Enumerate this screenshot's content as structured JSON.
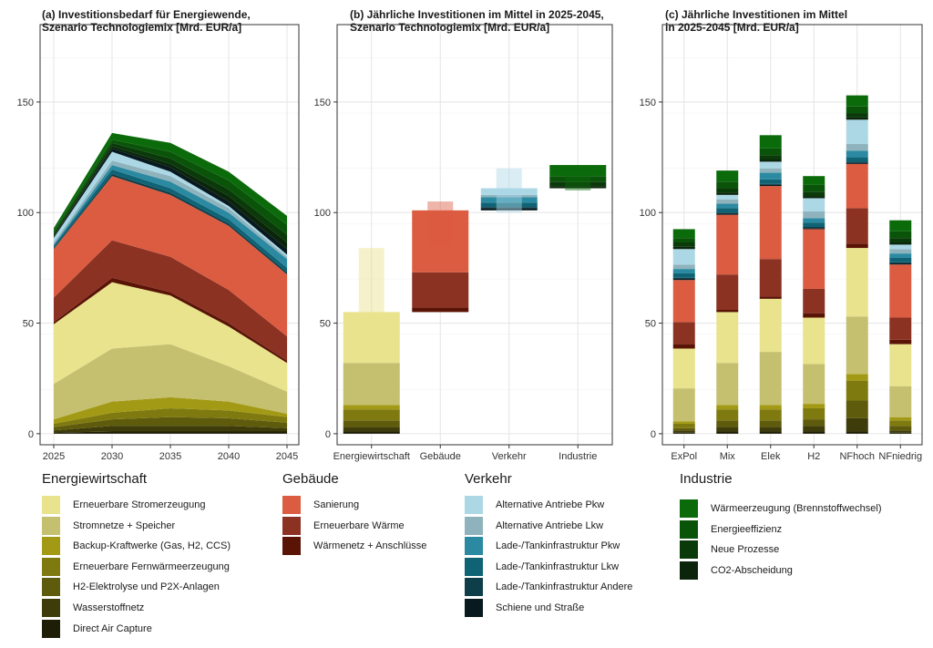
{
  "panels": {
    "a": {
      "title1": "(a) Investitionsbedarf für Energiewende,",
      "title2": "Szenario Technologiemix [Mrd. EUR/a]"
    },
    "b": {
      "title1": "(b) Jährliche Investitionen im Mittel in 2025-2045,",
      "title2": "Szenario Technologiemix [Mrd. EUR/a]"
    },
    "c": {
      "title1": "(c) Jährliche Investitionen im Mittel",
      "title2": "in 2025-2045 [Mrd. EUR/a]"
    }
  },
  "legend": {
    "groups": [
      {
        "title": "Energiewirtschaft",
        "items": [
          {
            "label": "Erneuerbare Stromerzeugung",
            "color": "#e8e38c"
          },
          {
            "label": "Stromnetze + Speicher",
            "color": "#c5bf70"
          },
          {
            "label": "Backup-Kraftwerke (Gas, H2, CCS)",
            "color": "#a29a14"
          },
          {
            "label": "Erneuerbare Fernwärmeerzeugung",
            "color": "#7f7a10"
          },
          {
            "label": "H2-Elektrolyse und P2X-Anlagen",
            "color": "#5f5b0d"
          },
          {
            "label": "Wasserstoffnetz",
            "color": "#3e3c0a"
          },
          {
            "label": "Direct Air Capture",
            "color": "#1e1d06"
          }
        ]
      },
      {
        "title": "Gebäude",
        "items": [
          {
            "label": "Sanierung",
            "color": "#dc5c41"
          },
          {
            "label": "Erneuerbare Wärme",
            "color": "#8b3223"
          },
          {
            "label": "Wärmenetz + Anschlüsse",
            "color": "#5a1406"
          }
        ]
      },
      {
        "title": "Verkehr",
        "items": [
          {
            "label": "Alternative Antriebe Pkw",
            "color": "#acd8e6"
          },
          {
            "label": "Alternative Antriebe Lkw",
            "color": "#8fb3bd"
          },
          {
            "label": "Lade-/Tankinfrastruktur Pkw",
            "color": "#2b8aa1"
          },
          {
            "label": "Lade-/Tankinfrastruktur Lkw",
            "color": "#0f6375"
          },
          {
            "label": "Lade-/Tankinfrastruktur Andere",
            "color": "#0e3e4a"
          },
          {
            "label": "Schiene und Straße",
            "color": "#081a20"
          }
        ]
      },
      {
        "title": "Industrie",
        "items": [
          {
            "label": "Wärmeerzeugung (Brennstoffwechsel)",
            "color": "#0b6b0b"
          },
          {
            "label": "Energieeffizienz",
            "color": "#0a540a"
          },
          {
            "label": "Neue Prozesse",
            "color": "#0a3a0a"
          },
          {
            "label": "CO2-Abscheidung",
            "color": "#0b250b"
          }
        ]
      }
    ]
  },
  "chart_data": [
    {
      "type": "area",
      "title": "(a) Investitionsbedarf für Energiewende, Szenario Technologiemix [Mrd. EUR/a]",
      "x": [
        2025,
        2030,
        2035,
        2040,
        2045
      ],
      "xticks": [
        "2025",
        "2030",
        "2035",
        "2040",
        "2045"
      ],
      "ylim": [
        -5,
        185
      ],
      "yticks": [
        0,
        50,
        100,
        150
      ],
      "grid": true,
      "series": [
        {
          "name": "Direct Air Capture",
          "values": [
            0.5,
            1,
            1,
            1,
            1
          ]
        },
        {
          "name": "Wasserstoffnetz",
          "values": [
            1,
            2.5,
            2.5,
            2.5,
            1.5
          ]
        },
        {
          "name": "H2-Elektrolyse und P2X-Anlagen",
          "values": [
            1.5,
            3,
            4,
            3.5,
            2.5
          ]
        },
        {
          "name": "Erneuerbare Fernwärmeerzeugung",
          "values": [
            1.5,
            3,
            4,
            3.5,
            2.5
          ]
        },
        {
          "name": "Backup-Kraftwerke (Gas, H2, CCS)",
          "values": [
            2,
            5,
            5,
            4,
            1.5
          ]
        },
        {
          "name": "Stromnetze + Speicher",
          "values": [
            16,
            24,
            24,
            16,
            10
          ]
        },
        {
          "name": "Erneuerbare Stromerzeugung",
          "values": [
            27,
            30,
            22,
            18,
            13
          ]
        },
        {
          "name": "Wärmenetz + Anschlüsse",
          "values": [
            1,
            2,
            1.5,
            1.5,
            1
          ]
        },
        {
          "name": "Erneuerbare Wärme",
          "values": [
            11,
            17,
            16,
            15,
            11
          ]
        },
        {
          "name": "Sanierung",
          "values": [
            22,
            29,
            28,
            29,
            28
          ]
        },
        {
          "name": "Lade-/Tankinfrastruktur Andere",
          "values": [
            0.5,
            1,
            1,
            1,
            1
          ]
        },
        {
          "name": "Lade-/Tankinfrastruktur Lkw",
          "values": [
            1,
            2,
            2,
            2,
            2
          ]
        },
        {
          "name": "Lade-/Tankinfrastruktur Pkw",
          "values": [
            0.5,
            2,
            3,
            3,
            4
          ]
        },
        {
          "name": "Alternative Antriebe Lkw",
          "values": [
            1,
            2,
            2.5,
            2,
            1
          ]
        },
        {
          "name": "Alternative Antriebe Pkw",
          "values": [
            2,
            4,
            2,
            1,
            1
          ]
        },
        {
          "name": "Schiene und Straße",
          "values": [
            0.5,
            1.5,
            2,
            2,
            2.5
          ]
        },
        {
          "name": "CO2-Abscheidung",
          "values": [
            0.5,
            1,
            1.5,
            2.5,
            3
          ]
        },
        {
          "name": "Neue Prozesse",
          "values": [
            1,
            1.5,
            2.5,
            3,
            3.5
          ]
        },
        {
          "name": "Energieeffizienz",
          "values": [
            1,
            1.5,
            3,
            4,
            4.5
          ]
        },
        {
          "name": "Wärmeerzeugung (Brennstoffwechsel)",
          "values": [
            1.5,
            3,
            4,
            4,
            4
          ]
        }
      ]
    },
    {
      "type": "waterfall",
      "title": "(b) Jährliche Investitionen im Mittel in 2025-2045, Szenario Technologiemix [Mrd. EUR/a]",
      "categories": [
        "Energiewirtschaft",
        "Gebäude",
        "Verkehr",
        "Industrie"
      ],
      "ylim": [
        -5,
        185
      ],
      "yticks": [
        0,
        50,
        100,
        150
      ],
      "grid": true,
      "stacks": [
        [
          {
            "name": "Direct Air Capture",
            "value": 1
          },
          {
            "name": "Wasserstoffnetz",
            "value": 2
          },
          {
            "name": "H2-Elektrolyse und P2X-Anlagen",
            "value": 3
          },
          {
            "name": "Erneuerbare Fernwärmeerzeugung",
            "value": 5
          },
          {
            "name": "Backup-Kraftwerke (Gas, H2, CCS)",
            "value": 2
          },
          {
            "name": "Stromnetze + Speicher",
            "value": 19
          },
          {
            "name": "Erneuerbare Stromerzeugung",
            "value": 23
          }
        ],
        [
          {
            "name": "Wärmenetz + Anschlüsse",
            "value": 2
          },
          {
            "name": "Erneuerbare Wärme",
            "value": 16
          },
          {
            "name": "Sanierung",
            "value": 28
          }
        ],
        [
          {
            "name": "Schiene und Straße",
            "value": 1
          },
          {
            "name": "Lade-/Tankinfrastruktur Andere",
            "value": 0.5
          },
          {
            "name": "Lade-/Tankinfrastruktur Lkw",
            "value": 2
          },
          {
            "name": "Lade-/Tankinfrastruktur Pkw",
            "value": 2.5
          },
          {
            "name": "Alternative Antriebe Lkw",
            "value": 1
          },
          {
            "name": "Alternative Antriebe Pkw",
            "value": 3
          }
        ],
        [
          {
            "name": "CO2-Abscheidung",
            "value": 1
          },
          {
            "name": "Neue Prozesse",
            "value": 2
          },
          {
            "name": "Energieeffizienz",
            "value": 2.5
          },
          {
            "name": "Wärmeerzeugung (Brennstoffwechsel)",
            "value": 5
          }
        ]
      ],
      "ranges": [
        [
          38,
          84
        ],
        [
          85,
          105
        ],
        [
          100,
          120
        ],
        [
          110,
          120
        ]
      ]
    },
    {
      "type": "bar",
      "title": "(c) Jährliche Investitionen im Mittel in 2025-2045 [Mrd. EUR/a]",
      "categories": [
        "ExPol",
        "Mix",
        "Elek",
        "H2",
        "NFhoch",
        "NFniedrig"
      ],
      "ylim": [
        -5,
        185
      ],
      "yticks": [
        0,
        50,
        100,
        150
      ],
      "grid": true,
      "series": [
        {
          "name": "Direct Air Capture",
          "values": [
            0.5,
            1,
            1,
            1,
            1,
            0.5
          ]
        },
        {
          "name": "Wasserstoffnetz",
          "values": [
            1,
            2,
            2,
            2.5,
            6,
            1
          ]
        },
        {
          "name": "H2-Elektrolyse und P2X-Anlagen",
          "values": [
            1,
            3,
            3,
            3,
            8,
            2
          ]
        },
        {
          "name": "Erneuerbare Fernwärmeerzeugung",
          "values": [
            2,
            5,
            5,
            5,
            9,
            2.5
          ]
        },
        {
          "name": "Backup-Kraftwerke (Gas, H2, CCS)",
          "values": [
            1,
            2,
            2,
            2,
            3,
            1.5
          ]
        },
        {
          "name": "Stromnetze + Speicher",
          "values": [
            15,
            19,
            24,
            18,
            26,
            14
          ]
        },
        {
          "name": "Erneuerbare Stromerzeugung",
          "values": [
            18,
            23,
            24,
            21,
            31,
            19
          ]
        },
        {
          "name": "Wärmenetz + Anschlüsse",
          "values": [
            2,
            1,
            1,
            2,
            2,
            2
          ]
        },
        {
          "name": "Erneuerbare Wärme",
          "values": [
            10,
            16,
            17,
            11,
            16,
            10
          ]
        },
        {
          "name": "Sanierung",
          "values": [
            19,
            27,
            33,
            27,
            20,
            24
          ]
        },
        {
          "name": "Schiene und Straße",
          "values": [
            0.5,
            0.5,
            0.5,
            0.5,
            0.5,
            0.5
          ]
        },
        {
          "name": "Lade-/Tankinfrastruktur Andere",
          "values": [
            0.5,
            0.5,
            0.5,
            0.5,
            0.5,
            0.5
          ]
        },
        {
          "name": "Lade-/Tankinfrastruktur Lkw",
          "values": [
            2,
            2,
            2,
            2,
            2,
            2
          ]
        },
        {
          "name": "Lade-/Tankinfrastruktur Pkw",
          "values": [
            2,
            2,
            3,
            2,
            3,
            2
          ]
        },
        {
          "name": "Alternative Antriebe Lkw",
          "values": [
            2,
            2,
            2,
            3,
            3,
            2
          ]
        },
        {
          "name": "Alternative Antriebe Pkw",
          "values": [
            7,
            2,
            3,
            6,
            11,
            2
          ]
        },
        {
          "name": "CO2-Abscheidung",
          "values": [
            1,
            1,
            1,
            1,
            1,
            1
          ]
        },
        {
          "name": "Neue Prozesse",
          "values": [
            2,
            2,
            2,
            2,
            2,
            2
          ]
        },
        {
          "name": "Energieeffizienz",
          "values": [
            2,
            3,
            3,
            3,
            3,
            3
          ]
        },
        {
          "name": "Wärmeerzeugung (Brennstoffwechsel)",
          "values": [
            4,
            5,
            6,
            4,
            5,
            5
          ]
        }
      ]
    }
  ]
}
